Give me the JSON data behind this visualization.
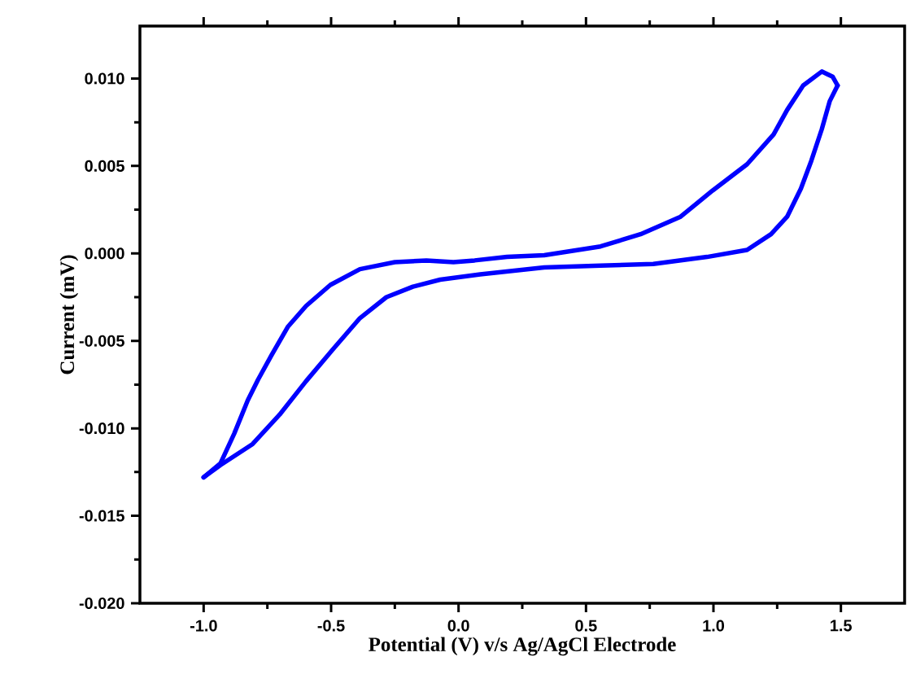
{
  "chart_data": {
    "type": "line",
    "xlabel": "Potential (V) v/s Ag/AgCl Electrode",
    "ylabel": "Current (mV)",
    "xlim": [
      -1.25,
      1.75
    ],
    "ylim": [
      -0.02,
      0.013
    ],
    "xticks": [
      {
        "value": -1,
        "label": "-1.0"
      },
      {
        "value": -0.5,
        "label": "-0.5"
      },
      {
        "value": 0,
        "label": "0.0"
      },
      {
        "value": 0.5,
        "label": "0.5"
      },
      {
        "value": 1,
        "label": "1.0"
      },
      {
        "value": 1.5,
        "label": "1.5"
      }
    ],
    "yticks": [
      {
        "value": -0.02,
        "label": "-0.020"
      },
      {
        "value": -0.015,
        "label": "-0.015"
      },
      {
        "value": -0.01,
        "label": "-0.010"
      },
      {
        "value": -0.005,
        "label": "-0.005"
      },
      {
        "value": 0,
        "label": "0.000"
      },
      {
        "value": 0.005,
        "label": "0.005"
      },
      {
        "value": 0.01,
        "label": "0.010"
      }
    ],
    "marker": "none",
    "line_style": "solid",
    "series": [
      {
        "color": "#0000ff",
        "x": [
          -1.0,
          -0.934,
          -0.88,
          -0.827,
          -0.786,
          -0.733,
          -0.67,
          -0.598,
          -0.503,
          -0.387,
          -0.25,
          -0.126,
          -0.02,
          0.063,
          0.19,
          0.336,
          0.557,
          0.714,
          0.871,
          0.997,
          1.132,
          1.236,
          1.289,
          1.352,
          1.425,
          1.468,
          1.487
        ],
        "values": [
          -0.0128,
          -0.012,
          -0.0103,
          -0.0084,
          -0.0072,
          -0.0058,
          -0.0042,
          -0.003,
          -0.0018,
          -0.0009,
          -0.0005,
          -0.0004,
          -0.0005,
          -0.0004,
          -0.0002,
          -0.0001,
          0.0004,
          0.0011,
          0.0021,
          0.0036,
          0.0051,
          0.0068,
          0.0082,
          0.0096,
          0.0104,
          0.0101,
          0.0096
        ]
      },
      {
        "color": "#0000ff",
        "x": [
          1.487,
          1.456,
          1.425,
          1.384,
          1.343,
          1.289,
          1.226,
          1.132,
          0.975,
          0.764,
          0.557,
          0.336,
          0.085,
          -0.072,
          -0.179,
          -0.283,
          -0.387,
          -0.494,
          -0.598,
          -0.701,
          -0.808,
          -0.934,
          -1.0
        ],
        "values": [
          0.0096,
          0.0087,
          0.0071,
          0.0053,
          0.0037,
          0.0021,
          0.0011,
          0.0002,
          -0.0002,
          -0.0006,
          -0.0007,
          -0.0008,
          -0.0012,
          -0.0015,
          -0.0019,
          -0.0025,
          -0.0037,
          -0.0055,
          -0.0073,
          -0.0092,
          -0.0109,
          -0.0121,
          -0.0128
        ]
      }
    ]
  }
}
